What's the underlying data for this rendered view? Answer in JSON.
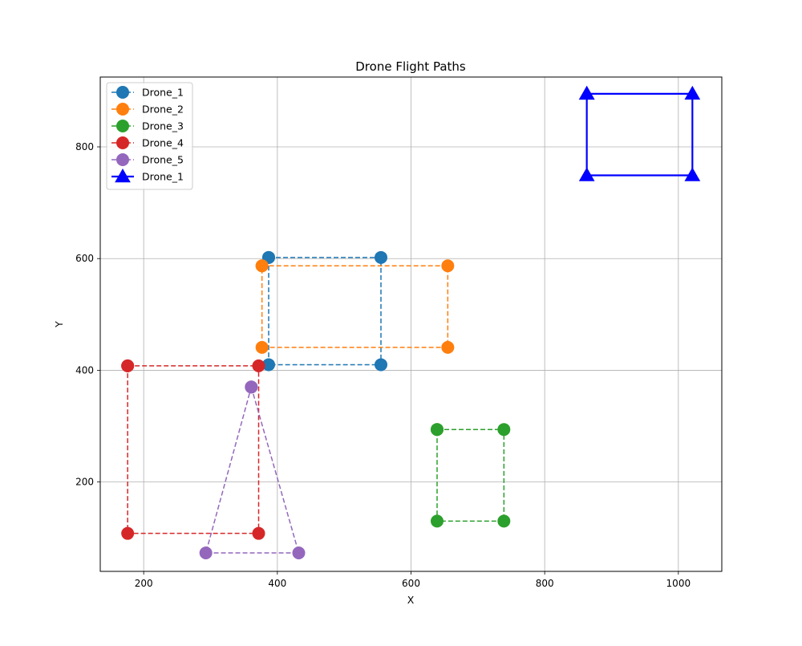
{
  "chart_data": {
    "type": "line",
    "title": "Drone Flight Paths",
    "xlabel": "X",
    "ylabel": "Y",
    "xlim": [
      135,
      1065
    ],
    "ylim": [
      40,
      925
    ],
    "xticks": [
      200,
      400,
      600,
      800,
      1000
    ],
    "yticks": [
      200,
      400,
      600,
      800
    ],
    "grid": true,
    "legend_position": "top-left",
    "series": [
      {
        "name": "Drone_1",
        "color": "#1f77b4",
        "marker": "circle",
        "linestyle": "dashed",
        "points": [
          [
            387,
            602
          ],
          [
            555,
            602
          ],
          [
            555,
            410
          ],
          [
            387,
            410
          ],
          [
            387,
            602
          ]
        ]
      },
      {
        "name": "Drone_2",
        "color": "#ff7f0e",
        "marker": "circle",
        "linestyle": "dashed",
        "points": [
          [
            377,
            587
          ],
          [
            655,
            587
          ],
          [
            655,
            441
          ],
          [
            377,
            441
          ],
          [
            377,
            587
          ]
        ]
      },
      {
        "name": "Drone_3",
        "color": "#2ca02c",
        "marker": "circle",
        "linestyle": "dashed",
        "points": [
          [
            639,
            294
          ],
          [
            739,
            294
          ],
          [
            739,
            130
          ],
          [
            639,
            130
          ],
          [
            639,
            294
          ]
        ]
      },
      {
        "name": "Drone_4",
        "color": "#d62728",
        "marker": "circle",
        "linestyle": "dashed",
        "points": [
          [
            176,
            408
          ],
          [
            372,
            408
          ],
          [
            372,
            108
          ],
          [
            176,
            108
          ],
          [
            176,
            408
          ]
        ]
      },
      {
        "name": "Drone_5",
        "color": "#9467bd",
        "marker": "circle",
        "linestyle": "dashed",
        "points": [
          [
            361,
            370
          ],
          [
            432,
            73
          ],
          [
            293,
            73
          ],
          [
            361,
            370
          ]
        ]
      },
      {
        "name": "Drone_1",
        "color": "#0000ff",
        "marker": "triangle",
        "linestyle": "solid",
        "points": [
          [
            863,
            895
          ],
          [
            1021,
            895
          ],
          [
            1021,
            749
          ],
          [
            863,
            749
          ],
          [
            863,
            895
          ]
        ]
      }
    ]
  }
}
